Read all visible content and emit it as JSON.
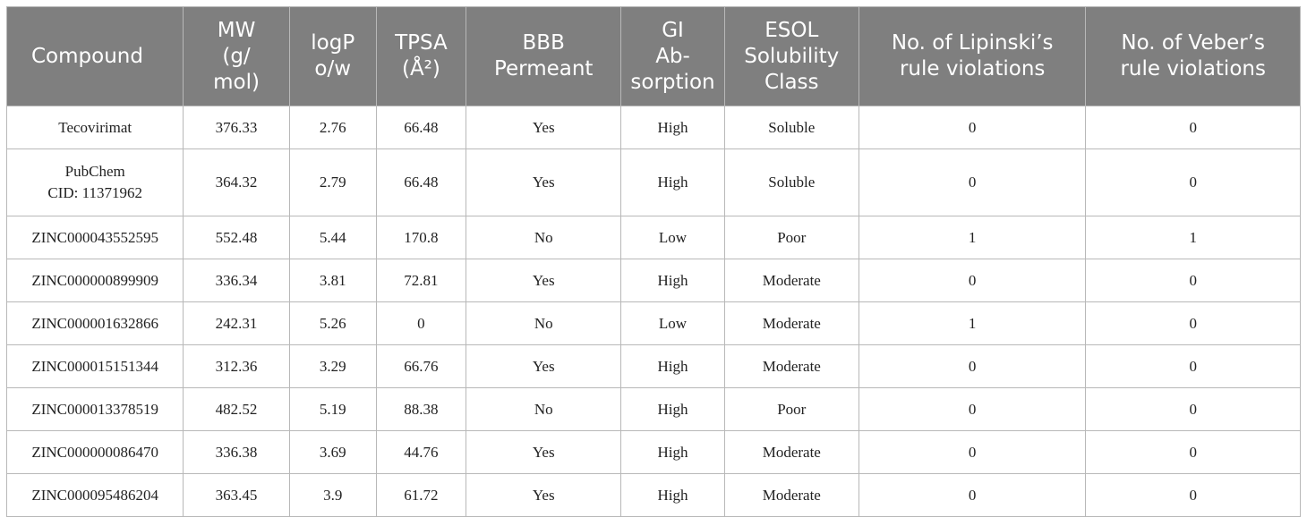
{
  "table": {
    "headers": [
      [
        "Compound"
      ],
      [
        "MW",
        "(g/",
        "mol)"
      ],
      [
        "logP",
        "o/w"
      ],
      [
        "TPSA",
        "(Å²)"
      ],
      [
        "BBB",
        "Permeant"
      ],
      [
        "GI",
        "Ab-",
        "sorption"
      ],
      [
        "ESOL",
        "Solubility",
        "Class"
      ],
      [
        "No. of Lipinski’s",
        "rule violations"
      ],
      [
        "No. of Veber’s",
        "rule violations"
      ]
    ],
    "rows": [
      [
        [
          "Tecovirimat"
        ],
        "376.33",
        "2.76",
        "66.48",
        "Yes",
        "High",
        "Soluble",
        "0",
        "0"
      ],
      [
        [
          "PubChem",
          "CID: 11371962"
        ],
        "364.32",
        "2.79",
        "66.48",
        "Yes",
        "High",
        "Soluble",
        "0",
        "0"
      ],
      [
        [
          "ZINC000043552595"
        ],
        "552.48",
        "5.44",
        "170.8",
        "No",
        "Low",
        "Poor",
        "1",
        "1"
      ],
      [
        [
          "ZINC000000899909"
        ],
        "336.34",
        "3.81",
        "72.81",
        "Yes",
        "High",
        "Moderate",
        "0",
        "0"
      ],
      [
        [
          "ZINC000001632866"
        ],
        "242.31",
        "5.26",
        "0",
        "No",
        "Low",
        "Moderate",
        "1",
        "0"
      ],
      [
        [
          "ZINC000015151344"
        ],
        "312.36",
        "3.29",
        "66.76",
        "Yes",
        "High",
        "Moderate",
        "0",
        "0"
      ],
      [
        [
          "ZINC000013378519"
        ],
        "482.52",
        "5.19",
        "88.38",
        "No",
        "High",
        "Poor",
        "0",
        "0"
      ],
      [
        [
          "ZINC000000086470"
        ],
        "336.38",
        "3.69",
        "44.76",
        "Yes",
        "High",
        "Moderate",
        "0",
        "0"
      ],
      [
        [
          "ZINC000095486204"
        ],
        "363.45",
        "3.9",
        "61.72",
        "Yes",
        "High",
        "Moderate",
        "0",
        "0"
      ]
    ]
  }
}
